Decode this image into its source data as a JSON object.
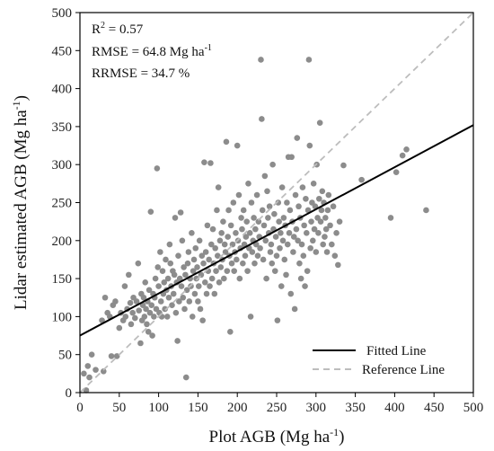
{
  "chart_data": {
    "type": "scatter",
    "xlabel": "Plot AGB (Mg ha",
    "xlabel_sup": "-1",
    "xlabel_end": ")",
    "ylabel": "Lidar estimated AGB (Mg ha",
    "ylabel_sup": "-1",
    "ylabel_end": ")",
    "xlim": [
      0,
      500
    ],
    "ylim": [
      0,
      500
    ],
    "xticks": [
      "0",
      "50",
      "100",
      "150",
      "200",
      "250",
      "300",
      "350",
      "400",
      "450",
      "500"
    ],
    "yticks": [
      "0",
      "50",
      "100",
      "150",
      "200",
      "250",
      "300",
      "350",
      "400",
      "450",
      "500"
    ],
    "grid": false,
    "legend_position": "bottom-right",
    "stats": {
      "r2_label": "R",
      "r2_sup": "2",
      "r2_value": " = 0.57",
      "rmse": "RMSE = 64.8 Mg ha",
      "rmse_sup": "-1",
      "rrmse": "RRMSE = 34.7 %"
    },
    "colors": {
      "points": "#8c8c8c",
      "fitted": "#000000",
      "reference": "#bdbdbd"
    },
    "series": [
      {
        "name": "Fitted Line",
        "kind": "line",
        "style": "solid",
        "x": [
          0,
          500
        ],
        "y": [
          75,
          352
        ]
      },
      {
        "name": "Reference Line",
        "kind": "line",
        "style": "dashed",
        "x": [
          0,
          500
        ],
        "y": [
          0,
          500
        ]
      }
    ],
    "points": [
      [
        5,
        25
      ],
      [
        8,
        3
      ],
      [
        10,
        35
      ],
      [
        12,
        20
      ],
      [
        15,
        50
      ],
      [
        20,
        30
      ],
      [
        28,
        95
      ],
      [
        30,
        28
      ],
      [
        32,
        125
      ],
      [
        35,
        105
      ],
      [
        38,
        100
      ],
      [
        40,
        48
      ],
      [
        42,
        115
      ],
      [
        45,
        120
      ],
      [
        47,
        48
      ],
      [
        50,
        85
      ],
      [
        52,
        105
      ],
      [
        55,
        95
      ],
      [
        57,
        140
      ],
      [
        58,
        100
      ],
      [
        60,
        110
      ],
      [
        62,
        155
      ],
      [
        64,
        118
      ],
      [
        65,
        90
      ],
      [
        67,
        105
      ],
      [
        68,
        125
      ],
      [
        70,
        98
      ],
      [
        72,
        120
      ],
      [
        74,
        170
      ],
      [
        75,
        108
      ],
      [
        77,
        65
      ],
      [
        78,
        130
      ],
      [
        79,
        95
      ],
      [
        80,
        115
      ],
      [
        81,
        125
      ],
      [
        82,
        100
      ],
      [
        83,
        145
      ],
      [
        84,
        110
      ],
      [
        85,
        90
      ],
      [
        86,
        120
      ],
      [
        87,
        80
      ],
      [
        88,
        135
      ],
      [
        89,
        105
      ],
      [
        90,
        238
      ],
      [
        91,
        115
      ],
      [
        92,
        75
      ],
      [
        93,
        130
      ],
      [
        94,
        100
      ],
      [
        95,
        125
      ],
      [
        96,
        150
      ],
      [
        97,
        110
      ],
      [
        98,
        295
      ],
      [
        99,
        165
      ],
      [
        100,
        140
      ],
      [
        101,
        105
      ],
      [
        102,
        185
      ],
      [
        103,
        120
      ],
      [
        104,
        100
      ],
      [
        105,
        160
      ],
      [
        106,
        130
      ],
      [
        107,
        145
      ],
      [
        108,
        110
      ],
      [
        109,
        175
      ],
      [
        110,
        135
      ],
      [
        111,
        100
      ],
      [
        112,
        150
      ],
      [
        113,
        125
      ],
      [
        114,
        195
      ],
      [
        115,
        170
      ],
      [
        116,
        140
      ],
      [
        117,
        115
      ],
      [
        118,
        160
      ],
      [
        119,
        130
      ],
      [
        120,
        155
      ],
      [
        121,
        230
      ],
      [
        122,
        105
      ],
      [
        123,
        145
      ],
      [
        124,
        68
      ],
      [
        125,
        180
      ],
      [
        126,
        120
      ],
      [
        127,
        150
      ],
      [
        128,
        237
      ],
      [
        129,
        140
      ],
      [
        130,
        200
      ],
      [
        131,
        125
      ],
      [
        132,
        165
      ],
      [
        133,
        110
      ],
      [
        134,
        155
      ],
      [
        135,
        20
      ],
      [
        136,
        135
      ],
      [
        137,
        170
      ],
      [
        138,
        185
      ],
      [
        139,
        120
      ],
      [
        140,
        150
      ],
      [
        141,
        140
      ],
      [
        142,
        210
      ],
      [
        143,
        100
      ],
      [
        144,
        160
      ],
      [
        145,
        175
      ],
      [
        146,
        130
      ],
      [
        147,
        190
      ],
      [
        148,
        150
      ],
      [
        149,
        165
      ],
      [
        150,
        120
      ],
      [
        151,
        140
      ],
      [
        152,
        200
      ],
      [
        153,
        110
      ],
      [
        154,
        155
      ],
      [
        155,
        180
      ],
      [
        156,
        95
      ],
      [
        157,
        170
      ],
      [
        158,
        303
      ],
      [
        159,
        145
      ],
      [
        160,
        185
      ],
      [
        161,
        130
      ],
      [
        162,
        220
      ],
      [
        163,
        160
      ],
      [
        164,
        175
      ],
      [
        165,
        140
      ],
      [
        166,
        302
      ],
      [
        167,
        195
      ],
      [
        168,
        150
      ],
      [
        169,
        215
      ],
      [
        170,
        170
      ],
      [
        171,
        130
      ],
      [
        172,
        190
      ],
      [
        173,
        160
      ],
      [
        174,
        240
      ],
      [
        175,
        180
      ],
      [
        176,
        270
      ],
      [
        177,
        145
      ],
      [
        178,
        200
      ],
      [
        179,
        165
      ],
      [
        180,
        210
      ],
      [
        181,
        175
      ],
      [
        182,
        225
      ],
      [
        183,
        150
      ],
      [
        184,
        195
      ],
      [
        185,
        185
      ],
      [
        186,
        330
      ],
      [
        187,
        160
      ],
      [
        188,
        205
      ],
      [
        189,
        240
      ],
      [
        190,
        180
      ],
      [
        191,
        80
      ],
      [
        192,
        220
      ],
      [
        193,
        170
      ],
      [
        194,
        195
      ],
      [
        195,
        250
      ],
      [
        196,
        160
      ],
      [
        197,
        185
      ],
      [
        198,
        210
      ],
      [
        199,
        175
      ],
      [
        200,
        325
      ],
      [
        201,
        200
      ],
      [
        202,
        260
      ],
      [
        203,
        150
      ],
      [
        204,
        190
      ],
      [
        205,
        230
      ],
      [
        206,
        215
      ],
      [
        207,
        170
      ],
      [
        208,
        240
      ],
      [
        209,
        195
      ],
      [
        210,
        180
      ],
      [
        211,
        205
      ],
      [
        212,
        225
      ],
      [
        213,
        160
      ],
      [
        214,
        275
      ],
      [
        215,
        190
      ],
      [
        216,
        210
      ],
      [
        217,
        100
      ],
      [
        218,
        250
      ],
      [
        219,
        185
      ],
      [
        220,
        200
      ],
      [
        221,
        230
      ],
      [
        222,
        170
      ],
      [
        223,
        215
      ],
      [
        224,
        195
      ],
      [
        225,
        260
      ],
      [
        226,
        180
      ],
      [
        227,
        225
      ],
      [
        228,
        205
      ],
      [
        229,
        190
      ],
      [
        230,
        438
      ],
      [
        231,
        360
      ],
      [
        232,
        240
      ],
      [
        233,
        175
      ],
      [
        234,
        220
      ],
      [
        235,
        285
      ],
      [
        236,
        200
      ],
      [
        237,
        150
      ],
      [
        238,
        265
      ],
      [
        239,
        230
      ],
      [
        240,
        210
      ],
      [
        241,
        245
      ],
      [
        242,
        185
      ],
      [
        243,
        195
      ],
      [
        244,
        170
      ],
      [
        245,
        300
      ],
      [
        246,
        215
      ],
      [
        247,
        235
      ],
      [
        248,
        160
      ],
      [
        249,
        205
      ],
      [
        250,
        180
      ],
      [
        251,
        95
      ],
      [
        252,
        250
      ],
      [
        253,
        225
      ],
      [
        254,
        190
      ],
      [
        255,
        210
      ],
      [
        256,
        140
      ],
      [
        257,
        270
      ],
      [
        258,
        200
      ],
      [
        259,
        230
      ],
      [
        260,
        175
      ],
      [
        261,
        220
      ],
      [
        262,
        155
      ],
      [
        263,
        250
      ],
      [
        264,
        195
      ],
      [
        265,
        310
      ],
      [
        266,
        210
      ],
      [
        267,
        240
      ],
      [
        268,
        130
      ],
      [
        269,
        310
      ],
      [
        270,
        225
      ],
      [
        271,
        185
      ],
      [
        272,
        205
      ],
      [
        273,
        110
      ],
      [
        274,
        260
      ],
      [
        275,
        215
      ],
      [
        276,
        335
      ],
      [
        277,
        200
      ],
      [
        278,
        245
      ],
      [
        279,
        170
      ],
      [
        280,
        230
      ],
      [
        281,
        150
      ],
      [
        282,
        195
      ],
      [
        283,
        270
      ],
      [
        284,
        180
      ],
      [
        285,
        220
      ],
      [
        286,
        140
      ],
      [
        287,
        255
      ],
      [
        288,
        210
      ],
      [
        289,
        160
      ],
      [
        290,
        240
      ],
      [
        291,
        438
      ],
      [
        292,
        325
      ],
      [
        293,
        190
      ],
      [
        294,
        225
      ],
      [
        295,
        250
      ],
      [
        296,
        200
      ],
      [
        297,
        275
      ],
      [
        298,
        215
      ],
      [
        299,
        245
      ],
      [
        300,
        185
      ],
      [
        301,
        300
      ],
      [
        302,
        230
      ],
      [
        303,
        210
      ],
      [
        304,
        255
      ],
      [
        305,
        355
      ],
      [
        306,
        225
      ],
      [
        307,
        240
      ],
      [
        308,
        265
      ],
      [
        309,
        195
      ],
      [
        310,
        250
      ],
      [
        311,
        205
      ],
      [
        312,
        230
      ],
      [
        313,
        215
      ],
      [
        314,
        185
      ],
      [
        315,
        240
      ],
      [
        316,
        260
      ],
      [
        318,
        220
      ],
      [
        320,
        195
      ],
      [
        322,
        245
      ],
      [
        324,
        180
      ],
      [
        326,
        210
      ],
      [
        328,
        168
      ],
      [
        330,
        225
      ],
      [
        335,
        299
      ],
      [
        358,
        280
      ],
      [
        395,
        230
      ],
      [
        402,
        290
      ],
      [
        410,
        312
      ],
      [
        415,
        320
      ],
      [
        440,
        240
      ]
    ]
  }
}
